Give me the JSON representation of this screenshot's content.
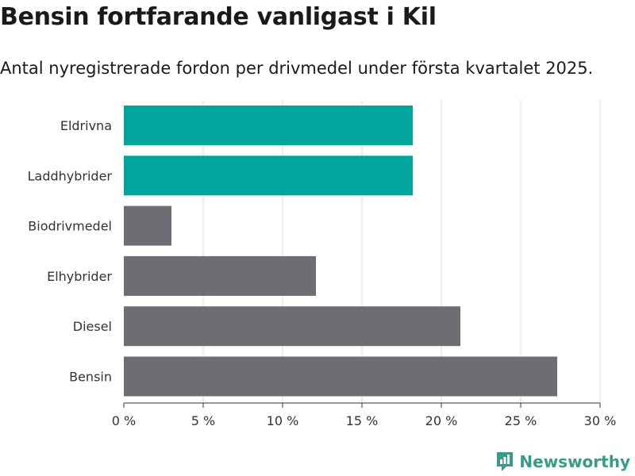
{
  "header": {
    "title": "Bensin fortfarande vanligast i Kil",
    "subtitle": "Antal nyregistrerade fordon per drivmedel under första kvartalet 2025."
  },
  "brand": {
    "name": "Newsworthy",
    "icon": "newsworthy-logo-icon",
    "color": "#3a9a8a"
  },
  "colors": {
    "highlight": "#00a69c",
    "default": "#6e6d74",
    "grid": "#dddddd"
  },
  "chart_data": {
    "type": "bar",
    "orientation": "horizontal",
    "categories": [
      "Eldrivna",
      "Laddhybrider",
      "Biodrivmedel",
      "Elhybrider",
      "Diesel",
      "Bensin"
    ],
    "values": [
      18.2,
      18.2,
      3.0,
      12.1,
      21.2,
      27.3
    ],
    "highlighted": [
      true,
      true,
      false,
      false,
      false,
      false
    ],
    "xlim": [
      0,
      30
    ],
    "xticks": [
      0,
      5,
      10,
      15,
      20,
      25,
      30
    ],
    "tick_labels": [
      "0 %",
      "5 %",
      "10 %",
      "15 %",
      "20 %",
      "25 %",
      "30 %"
    ],
    "grid": true,
    "title": "Bensin fortfarande vanligast i Kil",
    "subtitle": "Antal nyregistrerade fordon per drivmedel under första kvartalet 2025.",
    "xlabel": "",
    "ylabel": ""
  }
}
